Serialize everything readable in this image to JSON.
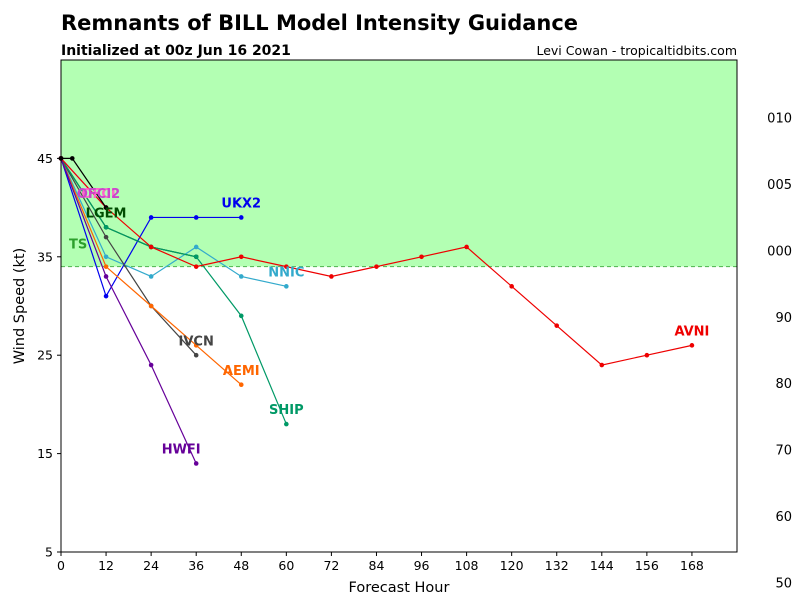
{
  "header": {
    "title": "Remnants of BILL Model Intensity Guidance",
    "subtitle": "Initialized at 00z Jun 16 2021",
    "credit": "Levi Cowan - tropicaltidbits.com"
  },
  "chart_data": {
    "type": "line",
    "xlabel": "Forecast Hour",
    "ylabel": "Wind Speed (kt)",
    "xlim": [
      0,
      180
    ],
    "ylim": [
      5,
      55
    ],
    "xticks": [
      0,
      12,
      24,
      36,
      48,
      60,
      72,
      84,
      96,
      108,
      120,
      132,
      144,
      156,
      168
    ],
    "yticks": [
      5,
      15,
      25,
      35,
      45
    ],
    "right_tick_labels": [
      "010",
      "005",
      "000",
      "90",
      "80",
      "70",
      "60",
      "50"
    ],
    "ts_threshold": {
      "value": 34,
      "label": "TS",
      "color": "#2ca02c"
    },
    "region_colors": {
      "tropical_storm": "#b3ffb3",
      "below": "#ffffff"
    },
    "series": [
      {
        "name": "OFCI",
        "color": "#ff66cc",
        "x": [
          0,
          12
        ],
        "y": [
          45,
          40
        ],
        "label_at": [
          10,
          41
        ]
      },
      {
        "name": "OFCI2",
        "color": "#cc44cc",
        "x": [
          0,
          12
        ],
        "y": [
          45,
          40
        ],
        "label_at": [
          10,
          41
        ]
      },
      {
        "name": "LGEM",
        "color": "#004d00",
        "x": [
          0,
          12,
          24,
          36
        ],
        "y": [
          45,
          38,
          36,
          35
        ],
        "label_at": [
          12,
          39
        ]
      },
      {
        "name": "UKX2",
        "color": "#0000ee",
        "x": [
          0,
          12,
          24,
          36,
          48
        ],
        "y": [
          45,
          31,
          39,
          39,
          39
        ],
        "label_at": [
          48,
          40
        ]
      },
      {
        "name": "NNIC",
        "color": "#33aacc",
        "x": [
          0,
          12,
          24,
          36,
          48,
          60
        ],
        "y": [
          45,
          35,
          33,
          36,
          33,
          32
        ],
        "label_at": [
          60,
          33
        ]
      },
      {
        "name": "IVCN",
        "color": "#444444",
        "x": [
          0,
          12,
          24,
          36
        ],
        "y": [
          45,
          37,
          30,
          25
        ],
        "label_at": [
          36,
          26
        ]
      },
      {
        "name": "AEMI",
        "color": "#ff6600",
        "x": [
          0,
          12,
          24,
          36,
          48
        ],
        "y": [
          45,
          34,
          30,
          26,
          22
        ],
        "label_at": [
          48,
          23
        ]
      },
      {
        "name": "SHIP",
        "color": "#009966",
        "x": [
          0,
          12,
          24,
          36,
          48,
          60
        ],
        "y": [
          45,
          38,
          36,
          35,
          29,
          18
        ],
        "label_at": [
          60,
          19
        ]
      },
      {
        "name": "HWFI",
        "color": "#660099",
        "x": [
          0,
          12,
          24,
          36
        ],
        "y": [
          45,
          33,
          24,
          14
        ],
        "label_at": [
          32,
          15
        ]
      },
      {
        "name": "AVNI",
        "color": "#ee0000",
        "x": [
          0,
          12,
          24,
          36,
          48,
          60,
          72,
          84,
          96,
          108,
          120,
          132,
          144,
          156,
          168
        ],
        "y": [
          45,
          40,
          36,
          34,
          35,
          34,
          33,
          34,
          35,
          36,
          32,
          28,
          24,
          25,
          26
        ],
        "label_at": [
          168,
          27
        ]
      },
      {
        "name": "",
        "color": "#000000",
        "x": [
          0,
          3,
          12
        ],
        "y": [
          45,
          45,
          40
        ],
        "label_at": null
      }
    ]
  }
}
